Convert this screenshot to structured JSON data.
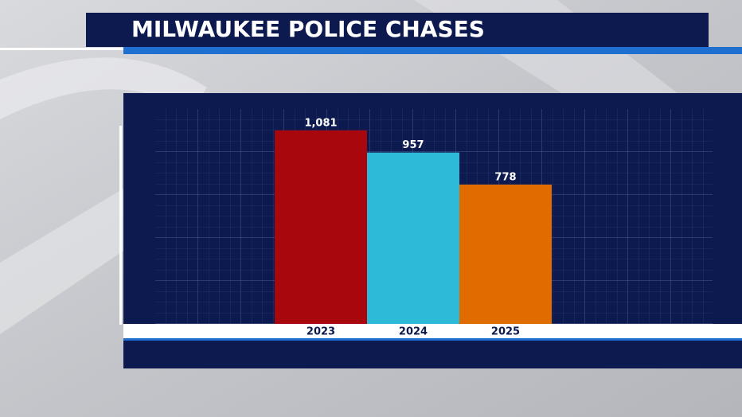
{
  "chart_data": {
    "type": "bar",
    "title": "MILWAUKEE POLICE CHASES",
    "categories": [
      "2023",
      "2024",
      "2025"
    ],
    "values": [
      1081,
      957,
      778
    ],
    "value_labels": [
      "1,081",
      "957",
      "778"
    ],
    "colors": [
      "#a8070d",
      "#2cbad8",
      "#e06c00"
    ],
    "ylim": [
      0,
      1200
    ]
  }
}
